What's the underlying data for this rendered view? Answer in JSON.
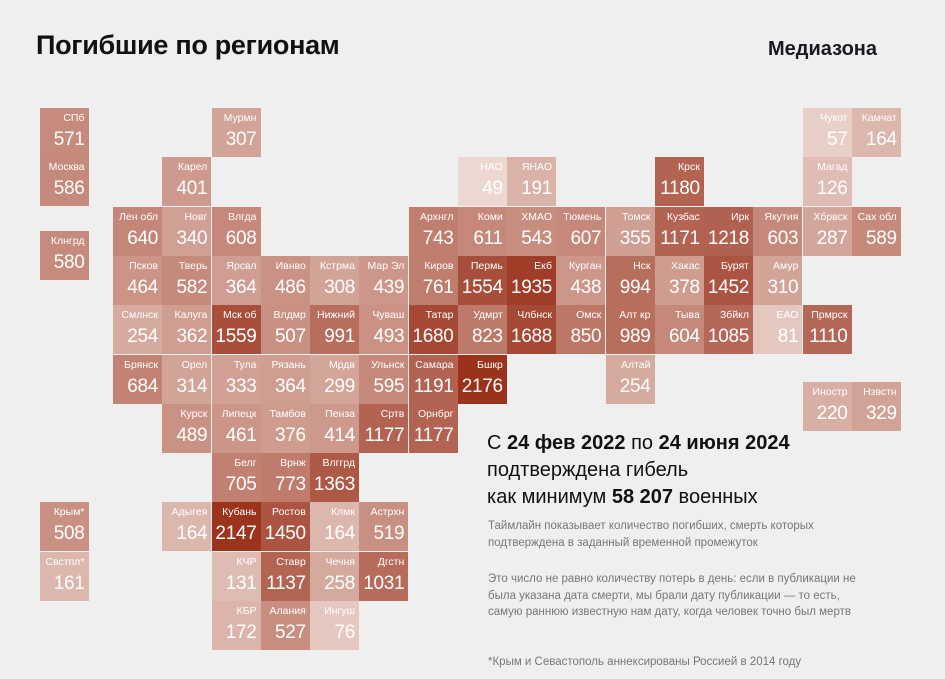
{
  "header": {
    "title": "Погибшие по регионам",
    "logo": "Медиазона"
  },
  "chart_data": {
    "type": "tile-map",
    "title": "Погибшие по регионам",
    "color_scale": {
      "low": "#ecd8d1",
      "high": "#9a321c",
      "min": 49,
      "max": 2176
    },
    "cells": [
      {
        "name": "СПб",
        "value": 571,
        "row": 0,
        "col": -1
      },
      {
        "name": "Мурмн",
        "value": 307,
        "row": 0,
        "col": 2
      },
      {
        "name": "Чукот",
        "value": 57,
        "row": 0,
        "col": 14
      },
      {
        "name": "Камчат",
        "value": 164,
        "row": 0,
        "col": 15
      },
      {
        "name": "Москва",
        "value": 586,
        "row": 1,
        "col": -1
      },
      {
        "name": "Карел",
        "value": 401,
        "row": 1,
        "col": 1
      },
      {
        "name": "НАО",
        "value": 49,
        "row": 1,
        "col": 7
      },
      {
        "name": "ЯНАО",
        "value": 191,
        "row": 1,
        "col": 8
      },
      {
        "name": "Крск",
        "value": 1180,
        "row": 1,
        "col": 11
      },
      {
        "name": "Магад",
        "value": 126,
        "row": 1,
        "col": 14
      },
      {
        "name": "Лен обл",
        "value": 640,
        "row": 2,
        "col": 0
      },
      {
        "name": "Новг",
        "value": 340,
        "row": 2,
        "col": 1
      },
      {
        "name": "Влгда",
        "value": 608,
        "row": 2,
        "col": 2
      },
      {
        "name": "Архнгл",
        "value": 743,
        "row": 2,
        "col": 6
      },
      {
        "name": "Коми",
        "value": 611,
        "row": 2,
        "col": 7
      },
      {
        "name": "ХМАО",
        "value": 543,
        "row": 2,
        "col": 8
      },
      {
        "name": "Тюмень",
        "value": 607,
        "row": 2,
        "col": 9
      },
      {
        "name": "Томск",
        "value": 355,
        "row": 2,
        "col": 10
      },
      {
        "name": "Кузбас",
        "value": 1171,
        "row": 2,
        "col": 11
      },
      {
        "name": "Ирк",
        "value": 1218,
        "row": 2,
        "col": 12
      },
      {
        "name": "Якутия",
        "value": 603,
        "row": 2,
        "col": 13
      },
      {
        "name": "Хбрвск",
        "value": 287,
        "row": 2,
        "col": 14
      },
      {
        "name": "Сах обл",
        "value": 589,
        "row": 2,
        "col": 15
      },
      {
        "name": "Клнгрд",
        "value": 580,
        "row": 2.5,
        "col": -1
      },
      {
        "name": "Псков",
        "value": 464,
        "row": 3,
        "col": 0
      },
      {
        "name": "Тверь",
        "value": 582,
        "row": 3,
        "col": 1
      },
      {
        "name": "Ярсвл",
        "value": 364,
        "row": 3,
        "col": 2
      },
      {
        "name": "Ивнво",
        "value": 486,
        "row": 3,
        "col": 3
      },
      {
        "name": "Кстрма",
        "value": 308,
        "row": 3,
        "col": 4
      },
      {
        "name": "Мар Эл",
        "value": 439,
        "row": 3,
        "col": 5
      },
      {
        "name": "Киров",
        "value": 761,
        "row": 3,
        "col": 6
      },
      {
        "name": "Пермь",
        "value": 1554,
        "row": 3,
        "col": 7
      },
      {
        "name": "Екб",
        "value": 1935,
        "row": 3,
        "col": 8
      },
      {
        "name": "Курган",
        "value": 438,
        "row": 3,
        "col": 9
      },
      {
        "name": "Нск",
        "value": 994,
        "row": 3,
        "col": 10
      },
      {
        "name": "Хакас",
        "value": 378,
        "row": 3,
        "col": 11
      },
      {
        "name": "Бурят",
        "value": 1452,
        "row": 3,
        "col": 12
      },
      {
        "name": "Амур",
        "value": 310,
        "row": 3,
        "col": 13
      },
      {
        "name": "Смлнск",
        "value": 254,
        "row": 4,
        "col": 0
      },
      {
        "name": "Калуга",
        "value": 362,
        "row": 4,
        "col": 1
      },
      {
        "name": "Мск об",
        "value": 1559,
        "row": 4,
        "col": 2
      },
      {
        "name": "Влдмр",
        "value": 507,
        "row": 4,
        "col": 3
      },
      {
        "name": "Нижний",
        "value": 991,
        "row": 4,
        "col": 4
      },
      {
        "name": "Чуваш",
        "value": 493,
        "row": 4,
        "col": 5
      },
      {
        "name": "Татар",
        "value": 1680,
        "row": 4,
        "col": 6
      },
      {
        "name": "Удмрт",
        "value": 823,
        "row": 4,
        "col": 7
      },
      {
        "name": "Члбнск",
        "value": 1688,
        "row": 4,
        "col": 8
      },
      {
        "name": "Омск",
        "value": 850,
        "row": 4,
        "col": 9
      },
      {
        "name": "Алт кр",
        "value": 989,
        "row": 4,
        "col": 10
      },
      {
        "name": "Тыва",
        "value": 604,
        "row": 4,
        "col": 11
      },
      {
        "name": "Збйкл",
        "value": 1085,
        "row": 4,
        "col": 12
      },
      {
        "name": "ЕАО",
        "value": 81,
        "row": 4,
        "col": 13
      },
      {
        "name": "Прмрск",
        "value": 1110,
        "row": 4,
        "col": 14
      },
      {
        "name": "Брянск",
        "value": 684,
        "row": 5,
        "col": 0
      },
      {
        "name": "Орел",
        "value": 314,
        "row": 5,
        "col": 1
      },
      {
        "name": "Тула",
        "value": 333,
        "row": 5,
        "col": 2
      },
      {
        "name": "Рязань",
        "value": 364,
        "row": 5,
        "col": 3
      },
      {
        "name": "Мрдв",
        "value": 299,
        "row": 5,
        "col": 4
      },
      {
        "name": "Ульнск",
        "value": 595,
        "row": 5,
        "col": 5
      },
      {
        "name": "Самара",
        "value": 1191,
        "row": 5,
        "col": 6
      },
      {
        "name": "Бшкр",
        "value": 2176,
        "row": 5,
        "col": 7
      },
      {
        "name": "Алтай",
        "value": 254,
        "row": 5,
        "col": 10
      },
      {
        "name": "Иностр",
        "value": 220,
        "row": 5.55,
        "col": 14
      },
      {
        "name": "Нзвстн",
        "value": 329,
        "row": 5.55,
        "col": 15
      },
      {
        "name": "Курск",
        "value": 489,
        "row": 6,
        "col": 1
      },
      {
        "name": "Липецк",
        "value": 461,
        "row": 6,
        "col": 2
      },
      {
        "name": "Тамбов",
        "value": 376,
        "row": 6,
        "col": 3
      },
      {
        "name": "Пенза",
        "value": 414,
        "row": 6,
        "col": 4
      },
      {
        "name": "Сртв",
        "value": 1177,
        "row": 6,
        "col": 5
      },
      {
        "name": "Орнбрг",
        "value": 1177,
        "row": 6,
        "col": 6
      },
      {
        "name": "Белг",
        "value": 705,
        "row": 7,
        "col": 2
      },
      {
        "name": "Врнж",
        "value": 773,
        "row": 7,
        "col": 3
      },
      {
        "name": "Влггрд",
        "value": 1363,
        "row": 7,
        "col": 4
      },
      {
        "name": "Крым*",
        "value": 508,
        "row": 8,
        "col": -1
      },
      {
        "name": "Адыгея",
        "value": 164,
        "row": 8,
        "col": 1
      },
      {
        "name": "Кубань",
        "value": 2147,
        "row": 8,
        "col": 2
      },
      {
        "name": "Ростов",
        "value": 1450,
        "row": 8,
        "col": 3
      },
      {
        "name": "Клмк",
        "value": 164,
        "row": 8,
        "col": 4
      },
      {
        "name": "Астрхн",
        "value": 519,
        "row": 8,
        "col": 5
      },
      {
        "name": "Свстпл*",
        "value": 161,
        "row": 9,
        "col": -1
      },
      {
        "name": "КЧР",
        "value": 131,
        "row": 9,
        "col": 2
      },
      {
        "name": "Ставр",
        "value": 1137,
        "row": 9,
        "col": 3
      },
      {
        "name": "Чечня",
        "value": 258,
        "row": 9,
        "col": 4
      },
      {
        "name": "Дгстн",
        "value": 1031,
        "row": 9,
        "col": 5
      },
      {
        "name": "КБР",
        "value": 172,
        "row": 10,
        "col": 2
      },
      {
        "name": "Алания",
        "value": 527,
        "row": 10,
        "col": 3
      },
      {
        "name": "Ингуш",
        "value": 76,
        "row": 10,
        "col": 4
      }
    ]
  },
  "summary": {
    "p1": "С ",
    "date_from": "24 фев 2022",
    "p2": " по ",
    "date_to": "24 июня 2024",
    "line2": "подтверждена гибель",
    "line3_pre": "как минимум ",
    "total": "58 207",
    "line3_post": " военных"
  },
  "notes": {
    "note1": "Таймлайн показывает количество погибших, смерть которых подтверждена в заданный временной промежуток",
    "note2": "Это число не равно количеству потерь в день: если в публикации не была указана дата смерти, мы брали дату публикации — то есть, самую раннюю известную нам дату, когда человек точно был мертв",
    "footnote": "*Крым и Севастополь аннексированы Россией в 2014 году"
  }
}
